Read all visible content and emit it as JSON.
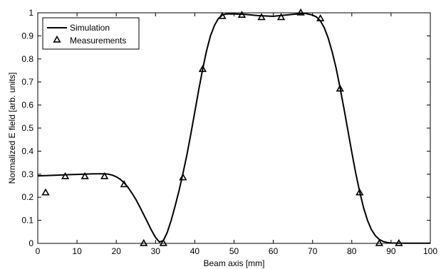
{
  "chart_data": {
    "type": "line",
    "xlabel": "Beam axis [mm]",
    "ylabel": "Normalized E field [arb. units]",
    "xlim": [
      0,
      100
    ],
    "ylim": [
      0,
      1
    ],
    "xticks": [
      "0",
      "10",
      "20",
      "30",
      "40",
      "50",
      "60",
      "70",
      "80",
      "90",
      "100"
    ],
    "yticks": [
      "0",
      "0.1",
      "0.2",
      "0.3",
      "0.4",
      "0.5",
      "0.6",
      "0.7",
      "0.8",
      "0.9",
      "1"
    ],
    "legend_position": "top-left",
    "grid": false,
    "series": [
      {
        "name": "Simulation",
        "style": "solid-line",
        "x": [
          0,
          2,
          5,
          8,
          10,
          13,
          15,
          17,
          18,
          19,
          20,
          21,
          22,
          23,
          24,
          25,
          26,
          27,
          28,
          29,
          30,
          31,
          32,
          33,
          34,
          35,
          36,
          37,
          38,
          39,
          40,
          41,
          42,
          43,
          44,
          45,
          46,
          47,
          48,
          50,
          53,
          56,
          60,
          63,
          66,
          68,
          70,
          71,
          72,
          73,
          74,
          75,
          76,
          77,
          78,
          79,
          80,
          81,
          82,
          83,
          84,
          85,
          86,
          87,
          88,
          89,
          90,
          92,
          95,
          100
        ],
        "y": [
          0.293,
          0.294,
          0.296,
          0.298,
          0.299,
          0.301,
          0.302,
          0.302,
          0.3,
          0.296,
          0.289,
          0.278,
          0.263,
          0.243,
          0.218,
          0.19,
          0.158,
          0.124,
          0.09,
          0.056,
          0.026,
          0.006,
          0.012,
          0.048,
          0.1,
          0.162,
          0.23,
          0.305,
          0.385,
          0.475,
          0.57,
          0.665,
          0.755,
          0.835,
          0.9,
          0.945,
          0.975,
          0.99,
          0.995,
          0.995,
          0.993,
          0.988,
          0.985,
          0.99,
          0.995,
          0.998,
          0.99,
          0.982,
          0.965,
          0.935,
          0.89,
          0.83,
          0.76,
          0.675,
          0.585,
          0.49,
          0.395,
          0.305,
          0.225,
          0.155,
          0.1,
          0.06,
          0.033,
          0.017,
          0.008,
          0.004,
          0.002,
          0.001,
          0.001,
          0.001
        ]
      },
      {
        "name": "Measurements",
        "style": "triangle-markers",
        "x": [
          2,
          7,
          12,
          17,
          22,
          27,
          32,
          37,
          42,
          47,
          52,
          57,
          62,
          67,
          72,
          77,
          82,
          87,
          92
        ],
        "y": [
          0.22,
          0.29,
          0.29,
          0.29,
          0.255,
          0.0,
          0.0,
          0.285,
          0.755,
          0.985,
          0.99,
          0.98,
          0.98,
          1.0,
          0.975,
          0.67,
          0.22,
          0.0,
          0.0
        ]
      }
    ]
  }
}
